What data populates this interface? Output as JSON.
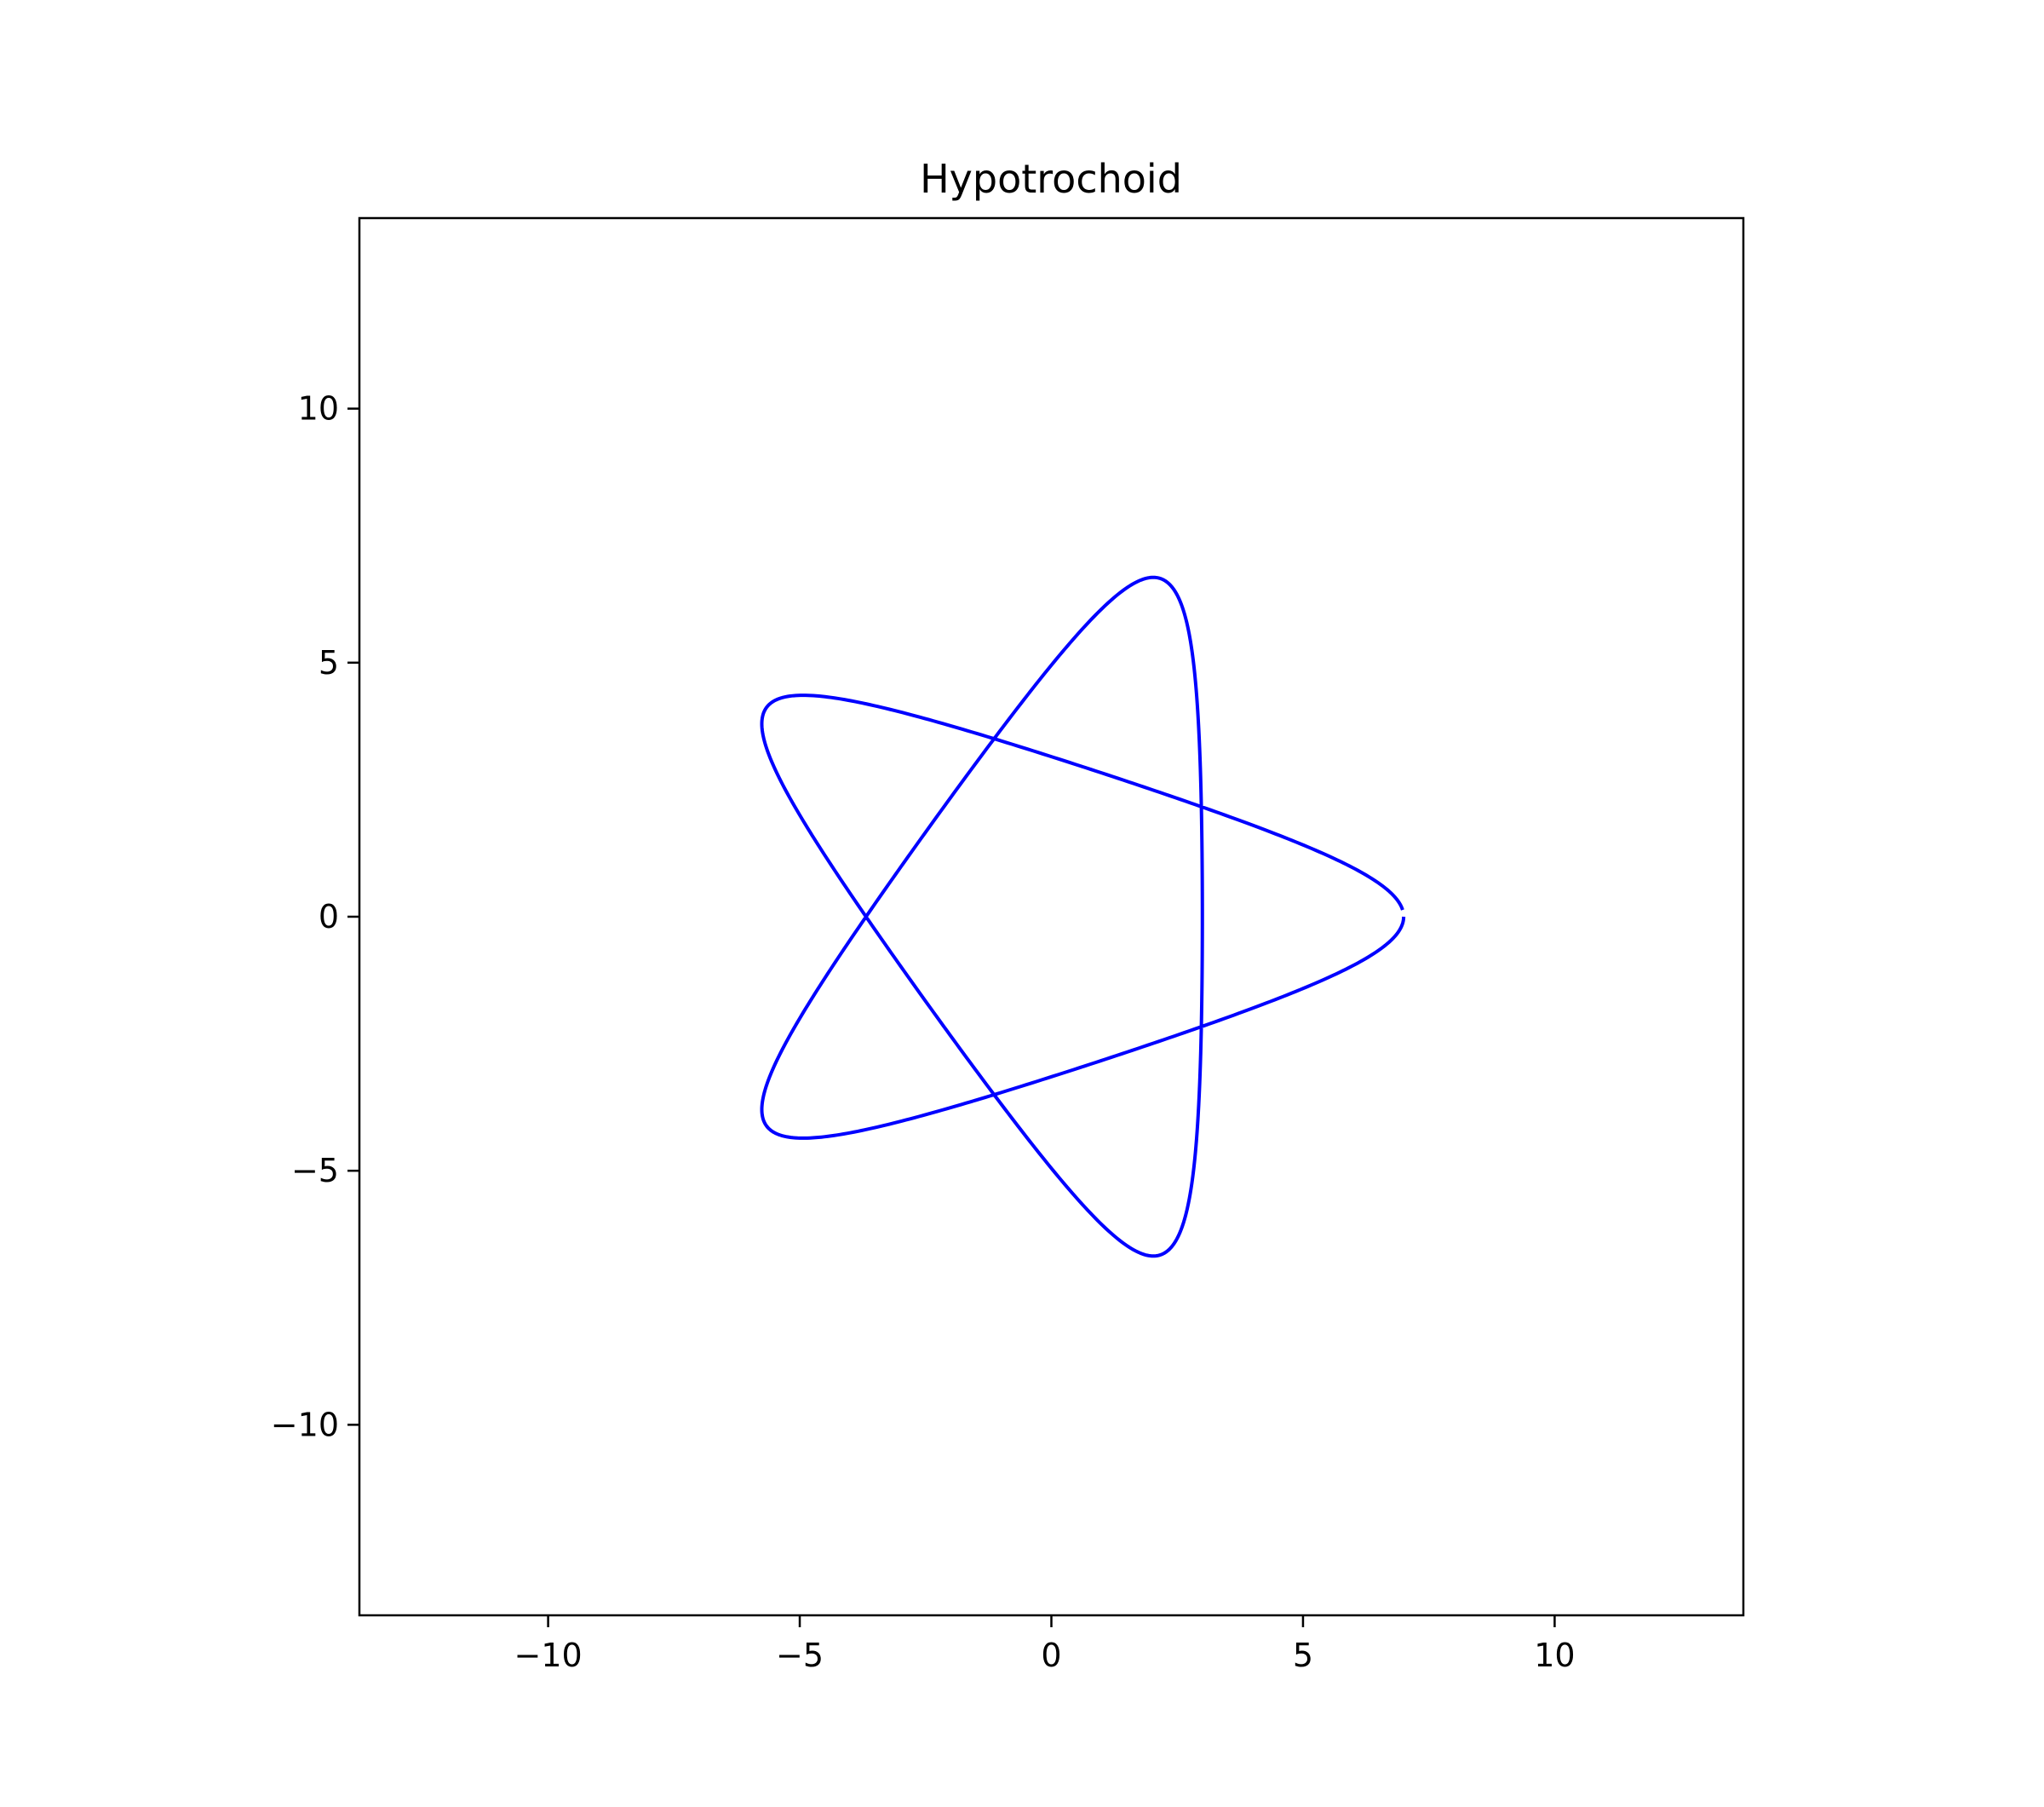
{
  "chart_data": {
    "type": "line",
    "title": "Hypotrochoid",
    "xlabel": "",
    "ylabel": "",
    "xlim": [
      -13.75,
      13.75
    ],
    "ylim": [
      -13.75,
      13.75
    ],
    "xticks": [
      -10,
      -5,
      0,
      5,
      10
    ],
    "yticks": [
      -10,
      -5,
      0,
      5,
      10
    ],
    "xtick_labels": [
      "−10",
      "−5",
      "0",
      "5",
      "10"
    ],
    "ytick_labels": [
      "−10",
      "−5",
      "0",
      "5",
      "10"
    ],
    "grid": false,
    "line_color": "#0000ff",
    "series": [
      {
        "curve": {
          "kind": "hypotrochoid",
          "R": 5,
          "r": 3,
          "d": 5,
          "t_start": 0,
          "t_end": 18.75,
          "samples": 900
        }
      }
    ]
  }
}
